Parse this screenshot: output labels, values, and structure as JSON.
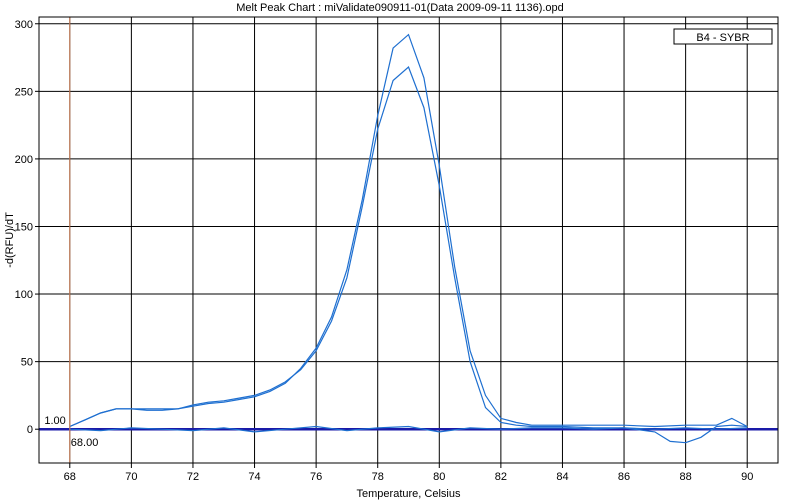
{
  "chart_data": {
    "type": "line",
    "title": "Melt Peak Chart : miValidate090911-01(Data 2009-09-11 1136).opd",
    "xlabel": "Temperature, Celsius",
    "ylabel": "-d(RFU)/dT",
    "xlim": [
      67,
      91
    ],
    "ylim": [
      -25,
      305
    ],
    "xticks": [
      68,
      70,
      72,
      74,
      76,
      78,
      80,
      82,
      84,
      86,
      88,
      90
    ],
    "yticks": [
      0,
      50,
      100,
      150,
      200,
      250,
      300
    ],
    "grid": true,
    "legend": {
      "label": "B4 - SYBR",
      "placement": "top-right"
    },
    "cursor": {
      "x": 68.0,
      "x_label": "68.00",
      "y_label": "1.00"
    },
    "colors": {
      "series": "#1e6fd0",
      "threshold": "#1a1aa8",
      "cursor": "#d4835a",
      "grid": "#000000"
    },
    "series": [
      {
        "x": [
          68,
          68.5,
          69,
          69.5,
          70,
          70.5,
          71,
          71.5,
          72,
          72.5,
          73,
          73.5,
          74,
          74.5,
          75,
          75.5,
          76,
          76.5,
          77,
          77.5,
          78,
          78.5,
          79,
          79.5,
          80,
          80.5,
          81,
          81.5,
          82,
          82.5,
          83,
          84,
          85,
          86,
          87,
          88,
          89,
          89.5,
          90
        ],
        "y": [
          2,
          7,
          12,
          15,
          15,
          15,
          15,
          15,
          17,
          19,
          20,
          22,
          24,
          28,
          34,
          45,
          60,
          83,
          118,
          170,
          232,
          282,
          292,
          260,
          195,
          120,
          58,
          25,
          8,
          5,
          3,
          3,
          3,
          3,
          2,
          3,
          3,
          8,
          2
        ]
      },
      {
        "x": [
          68,
          68.5,
          69,
          69.5,
          70,
          70.5,
          71,
          71.5,
          72,
          72.5,
          73,
          73.5,
          74,
          74.5,
          75,
          75.5,
          76,
          76.5,
          77,
          77.5,
          78,
          78.5,
          79,
          79.5,
          80,
          80.5,
          81,
          81.5,
          82,
          82.5,
          83,
          84,
          85,
          86,
          87,
          87.5,
          88,
          88.5,
          89,
          89.5,
          90
        ],
        "y": [
          2,
          7,
          12,
          15,
          15,
          14,
          14,
          15,
          18,
          20,
          21,
          23,
          25,
          29,
          35,
          44,
          58,
          80,
          112,
          165,
          222,
          258,
          268,
          238,
          180,
          112,
          50,
          16,
          5,
          3,
          2,
          2,
          1,
          1,
          -2,
          -9,
          -10,
          -6,
          2,
          3,
          2
        ]
      },
      {
        "x": [
          68,
          69,
          70,
          71,
          72,
          73,
          74,
          75,
          76,
          77,
          78,
          79,
          80,
          81,
          82,
          83,
          84,
          85,
          86,
          87,
          88,
          89,
          90
        ],
        "y": [
          0,
          -1,
          1,
          0,
          -1,
          1,
          -2,
          0,
          2,
          -1,
          1,
          2,
          -2,
          1,
          0,
          1,
          1,
          0,
          1,
          0,
          1,
          0,
          1
        ]
      }
    ],
    "threshold": 0
  }
}
